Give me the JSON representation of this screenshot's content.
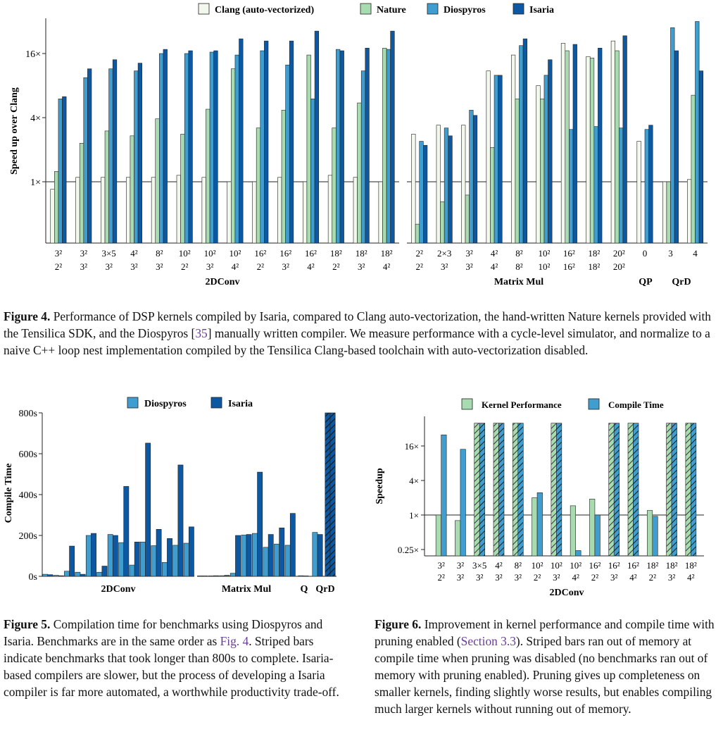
{
  "figure4": {
    "legend": [
      "Clang (auto-vectorized)",
      "Nature",
      "Diospyros",
      "Isaria"
    ],
    "ylabel": "Speed up over Clang",
    "yticks": [
      "1×",
      "4×",
      "16×"
    ],
    "groups": [
      {
        "name": "2DConv",
        "labels": [
          [
            "3²",
            "2²"
          ],
          [
            "3²",
            "3²"
          ],
          [
            "3×5",
            "3²"
          ],
          [
            "4²",
            "3²"
          ],
          [
            "8²",
            "3²"
          ],
          [
            "10²",
            "2²"
          ],
          [
            "10²",
            "3²"
          ],
          [
            "10²",
            "4²"
          ],
          [
            "16²",
            "2²"
          ],
          [
            "16²",
            "3²"
          ],
          [
            "16²",
            "4²"
          ],
          [
            "18²",
            "2²"
          ],
          [
            "18²",
            "3²"
          ],
          [
            "18²",
            "4²"
          ]
        ]
      },
      {
        "name": "Matrix Mul",
        "labels": [
          [
            "2²",
            "2²"
          ],
          [
            "2×3",
            "3²"
          ],
          [
            "3²",
            "3²"
          ],
          [
            "4²",
            "4²"
          ],
          [
            "8²",
            "8²"
          ],
          [
            "10²",
            "10²"
          ],
          [
            "16²",
            "16²"
          ],
          [
            "18²",
            "18²"
          ],
          [
            "20²",
            "20²"
          ]
        ]
      },
      {
        "name": "QP",
        "labels": [
          [
            "0",
            ""
          ]
        ]
      },
      {
        "name": "QrD",
        "labels": [
          [
            "3",
            ""
          ],
          [
            "4",
            ""
          ]
        ]
      }
    ],
    "caption_label": "Figure 4.",
    "caption_pre": " Performance of DSP kernels compiled by Isaria, compared to Clang auto-vectorization, the hand-written Nature kernels provided with the Tensilica SDK, and the Diospyros [",
    "caption_ref": "35",
    "caption_post": "] manually written compiler. We measure performance with a cycle-level simulator, and normalize to a naive C++ loop nest implementation compiled by the Tensilica Clang-based toolchain with auto-vectorization disabled."
  },
  "figure5": {
    "legend": [
      "Diospyros",
      "Isaria"
    ],
    "ylabel": "Compile Time",
    "yticks": [
      "0s",
      "200s",
      "400s",
      "600s",
      "800s"
    ],
    "group_labels": [
      "2DConv",
      "Matrix Mul",
      "Q",
      "QrD"
    ],
    "caption_label": "Figure 5.",
    "caption_pre": " Compilation time for benchmarks using Diospyros and Isaria. Benchmarks are in the same order as ",
    "caption_ref": "Fig. 4",
    "caption_post": ". Striped bars indicate benchmarks that took longer than 800s to complete. Isaria-based compilers are slower, but the process of developing a Isaria compiler is far more automated, a worthwhile productivity trade-off."
  },
  "figure6": {
    "legend": [
      "Kernel Performance",
      "Compile Time"
    ],
    "ylabel": "Speedup",
    "yticks": [
      "0.25×",
      "1×",
      "4×",
      "16×"
    ],
    "xlabels": [
      [
        "3²",
        "2²"
      ],
      [
        "3²",
        "3²"
      ],
      [
        "3×5",
        "3²"
      ],
      [
        "4²",
        "3²"
      ],
      [
        "8²",
        "3²"
      ],
      [
        "10²",
        "2²"
      ],
      [
        "10²",
        "3²"
      ],
      [
        "10²",
        "4²"
      ],
      [
        "16²",
        "2²"
      ],
      [
        "16²",
        "3²"
      ],
      [
        "16²",
        "4²"
      ],
      [
        "18²",
        "2²"
      ],
      [
        "18²",
        "3²"
      ],
      [
        "18²",
        "4²"
      ]
    ],
    "group_label": "2DConv",
    "caption_label": "Figure 6.",
    "caption_pre": " Improvement in kernel performance and compile time with pruning enabled (",
    "caption_ref": "Section 3.3",
    "caption_post": "). Striped bars ran out of memory at compile time when pruning was disabled (no benchmarks ran out of memory with pruning enabled). Pruning gives up completeness on smaller kernels, finding slightly worse results, but enables compiling much larger kernels without running out of memory."
  },
  "colors": {
    "clang": "#f3f8ec",
    "nature": "#a8dcb0",
    "diospyros": "#3f9ecf",
    "isaria": "#0d58a2",
    "kernel": "#a8dcb0",
    "compile": "#3f9ecf"
  },
  "chart_data": [
    {
      "type": "bar",
      "title": "",
      "ylabel": "Speed up over Clang",
      "yscale": "log2",
      "ylim": [
        0.35,
        40
      ],
      "categories": [
        "2DConv 3²/2²",
        "2DConv 3²/3²",
        "2DConv 3×5/3²",
        "2DConv 4²/3²",
        "2DConv 8²/3²",
        "2DConv 10²/2²",
        "2DConv 10²/3²",
        "2DConv 10²/4²",
        "2DConv 16²/2²",
        "2DConv 16²/3²",
        "2DConv 16²/4²",
        "2DConv 18²/2²",
        "2DConv 18²/3²",
        "2DConv 18²/4²",
        "Matrix Mul 2²/2²",
        "Matrix Mul 2×3/3²",
        "Matrix Mul 3²/3²",
        "Matrix Mul 4²/4²",
        "Matrix Mul 8²/8²",
        "Matrix Mul 10²/10²",
        "Matrix Mul 16²/16²",
        "Matrix Mul 18²/18²",
        "Matrix Mul 20²/20²",
        "QP 0",
        "QrD 3",
        "QrD 4"
      ],
      "series": [
        {
          "name": "Clang (auto-vectorized)",
          "values": [
            0.85,
            1.1,
            1.1,
            1.1,
            1.1,
            1.15,
            1.1,
            1.0,
            1.0,
            1.1,
            1.0,
            1.15,
            1.1,
            1.0,
            2.8,
            3.4,
            3.4,
            11.0,
            15.5,
            8.0,
            20.0,
            15.0,
            21.0,
            2.4,
            1.0,
            1.05
          ]
        },
        {
          "name": "Nature",
          "values": [
            1.25,
            2.3,
            3.0,
            2.7,
            3.9,
            2.8,
            4.8,
            11.5,
            3.2,
            4.7,
            15.5,
            3.2,
            5.5,
            18.0,
            0.4,
            0.65,
            0.75,
            2.1,
            6.0,
            6.0,
            17.0,
            14.5,
            17.0,
            null,
            1.0,
            6.5
          ]
        },
        {
          "name": "Diospyros",
          "values": [
            6.0,
            9.5,
            11.5,
            11.0,
            16.0,
            16.0,
            16.5,
            15.5,
            17.0,
            12.5,
            6.0,
            17.5,
            11.0,
            17.5,
            2.4,
            3.2,
            4.7,
            10.0,
            19.0,
            10.0,
            3.1,
            3.3,
            3.2,
            3.1,
            28.0,
            32.0
          ]
        },
        {
          "name": "Isaria",
          "values": [
            6.3,
            11.5,
            14.0,
            13.0,
            17.5,
            17.0,
            17.0,
            22.0,
            21.0,
            21.0,
            26.0,
            17.0,
            18.0,
            26.0,
            2.2,
            2.7,
            4.2,
            10.0,
            22.0,
            14.0,
            19.5,
            18.0,
            23.5,
            3.4,
            17.0,
            11.0
          ]
        }
      ]
    },
    {
      "type": "bar",
      "title": "",
      "ylabel": "Compile Time",
      "ylim": [
        0,
        800
      ],
      "categories": [
        "2DConv 3²/2²",
        "2DConv 3²/3²",
        "2DConv 3×5/3²",
        "2DConv 4²/3²",
        "2DConv 8²/3²",
        "2DConv 10²/2²",
        "2DConv 10²/3²",
        "2DConv 10²/4²",
        "2DConv 16²/2²",
        "2DConv 16²/3²",
        "2DConv 16²/4²",
        "2DConv 18²/2²",
        "2DConv 18²/3²",
        "2DConv 18²/4²",
        "Matrix Mul 2²/2²",
        "Matrix Mul 2×3/3²",
        "Matrix Mul 3²/3²",
        "Matrix Mul 4²/4²",
        "Matrix Mul 8²/8²",
        "Matrix Mul 10²/10²",
        "Matrix Mul 16²/16²",
        "Matrix Mul 18²/18²",
        "Matrix Mul 20²/20²",
        "QP",
        "QrD 3",
        "QrD 4"
      ],
      "series": [
        {
          "name": "Diospyros",
          "values": [
            10,
            5,
            25,
            20,
            200,
            20,
            205,
            165,
            55,
            168,
            150,
            68,
            152,
            162,
            2,
            2,
            3,
            15,
            202,
            210,
            142,
            158,
            152,
            3,
            215,
            800
          ]
        },
        {
          "name": "Isaria",
          "values": [
            8,
            3,
            148,
            10,
            210,
            50,
            200,
            440,
            168,
            652,
            230,
            185,
            545,
            242,
            2,
            3,
            5,
            200,
            205,
            510,
            205,
            237,
            308,
            2,
            205,
            800
          ]
        }
      ],
      "striped": [
        "QrD 4 Diospyros",
        "QrD 4 Isaria"
      ]
    },
    {
      "type": "bar",
      "title": "",
      "ylabel": "Speedup",
      "yscale": "log2",
      "ylim": [
        0.2,
        40
      ],
      "categories": [
        "3²/2²",
        "3²/3²",
        "3×5/3²",
        "4²/3²",
        "8²/3²",
        "10²/2²",
        "10²/3²",
        "10²/4²",
        "16²/2²",
        "16²/3²",
        "16²/4²",
        "18²/2²",
        "18²/3²",
        "18²/4²"
      ],
      "series": [
        {
          "name": "Kernel Performance",
          "values": [
            1.0,
            0.8,
            40,
            40,
            40,
            2.0,
            40,
            1.45,
            1.9,
            40,
            40,
            1.2,
            40,
            40
          ]
        },
        {
          "name": "Compile Time",
          "values": [
            25,
            14,
            40,
            40,
            40,
            2.45,
            40,
            0.24,
            1.0,
            40,
            40,
            0.95,
            40,
            40
          ]
        }
      ],
      "striped": [
        "3×5/3²",
        "4²/3²",
        "8²/3²",
        "10²/3²",
        "16²/3²",
        "16²/4²",
        "18²/3²",
        "18²/4²"
      ]
    }
  ]
}
